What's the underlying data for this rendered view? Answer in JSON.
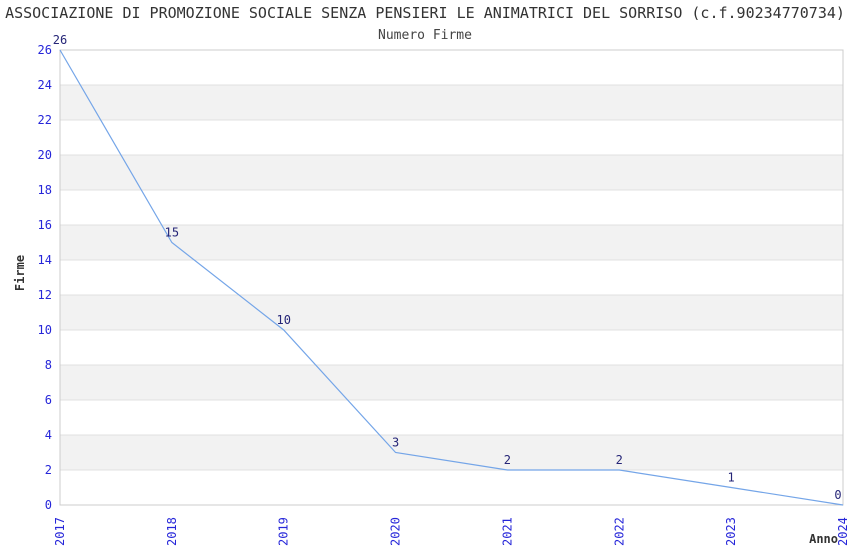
{
  "header": {
    "title": "ASSOCIAZIONE DI PROMOZIONE SOCIALE SENZA PENSIERI LE ANIMATRICI DEL SORRISO (c.f.90234770734)",
    "subtitle": "Numero Firme"
  },
  "chart_data": {
    "type": "line",
    "categories": [
      "2017",
      "2018",
      "2019",
      "2020",
      "2021",
      "2022",
      "2023",
      "2024"
    ],
    "values": [
      26,
      15,
      10,
      3,
      2,
      2,
      1,
      0
    ],
    "title": "Numero Firme",
    "xlabel": "Anno",
    "ylabel": "Firme",
    "ylim": [
      0,
      26
    ],
    "ytick_step": 2,
    "grid": "horizontal-even-values",
    "band_pattern": "alternating-2-unit-bands",
    "legend": "none",
    "data_labels": "above-points",
    "colors": {
      "line": "#74a5e8",
      "tick_label": "#2626d9",
      "data_label": "#252577",
      "band": "#f2f2f2",
      "gridline": "#e0e0e0",
      "frame": "#cccccc",
      "title": "#333333",
      "subtitle": "#444444",
      "axis_title": "#333333",
      "background": "#ffffff"
    }
  }
}
